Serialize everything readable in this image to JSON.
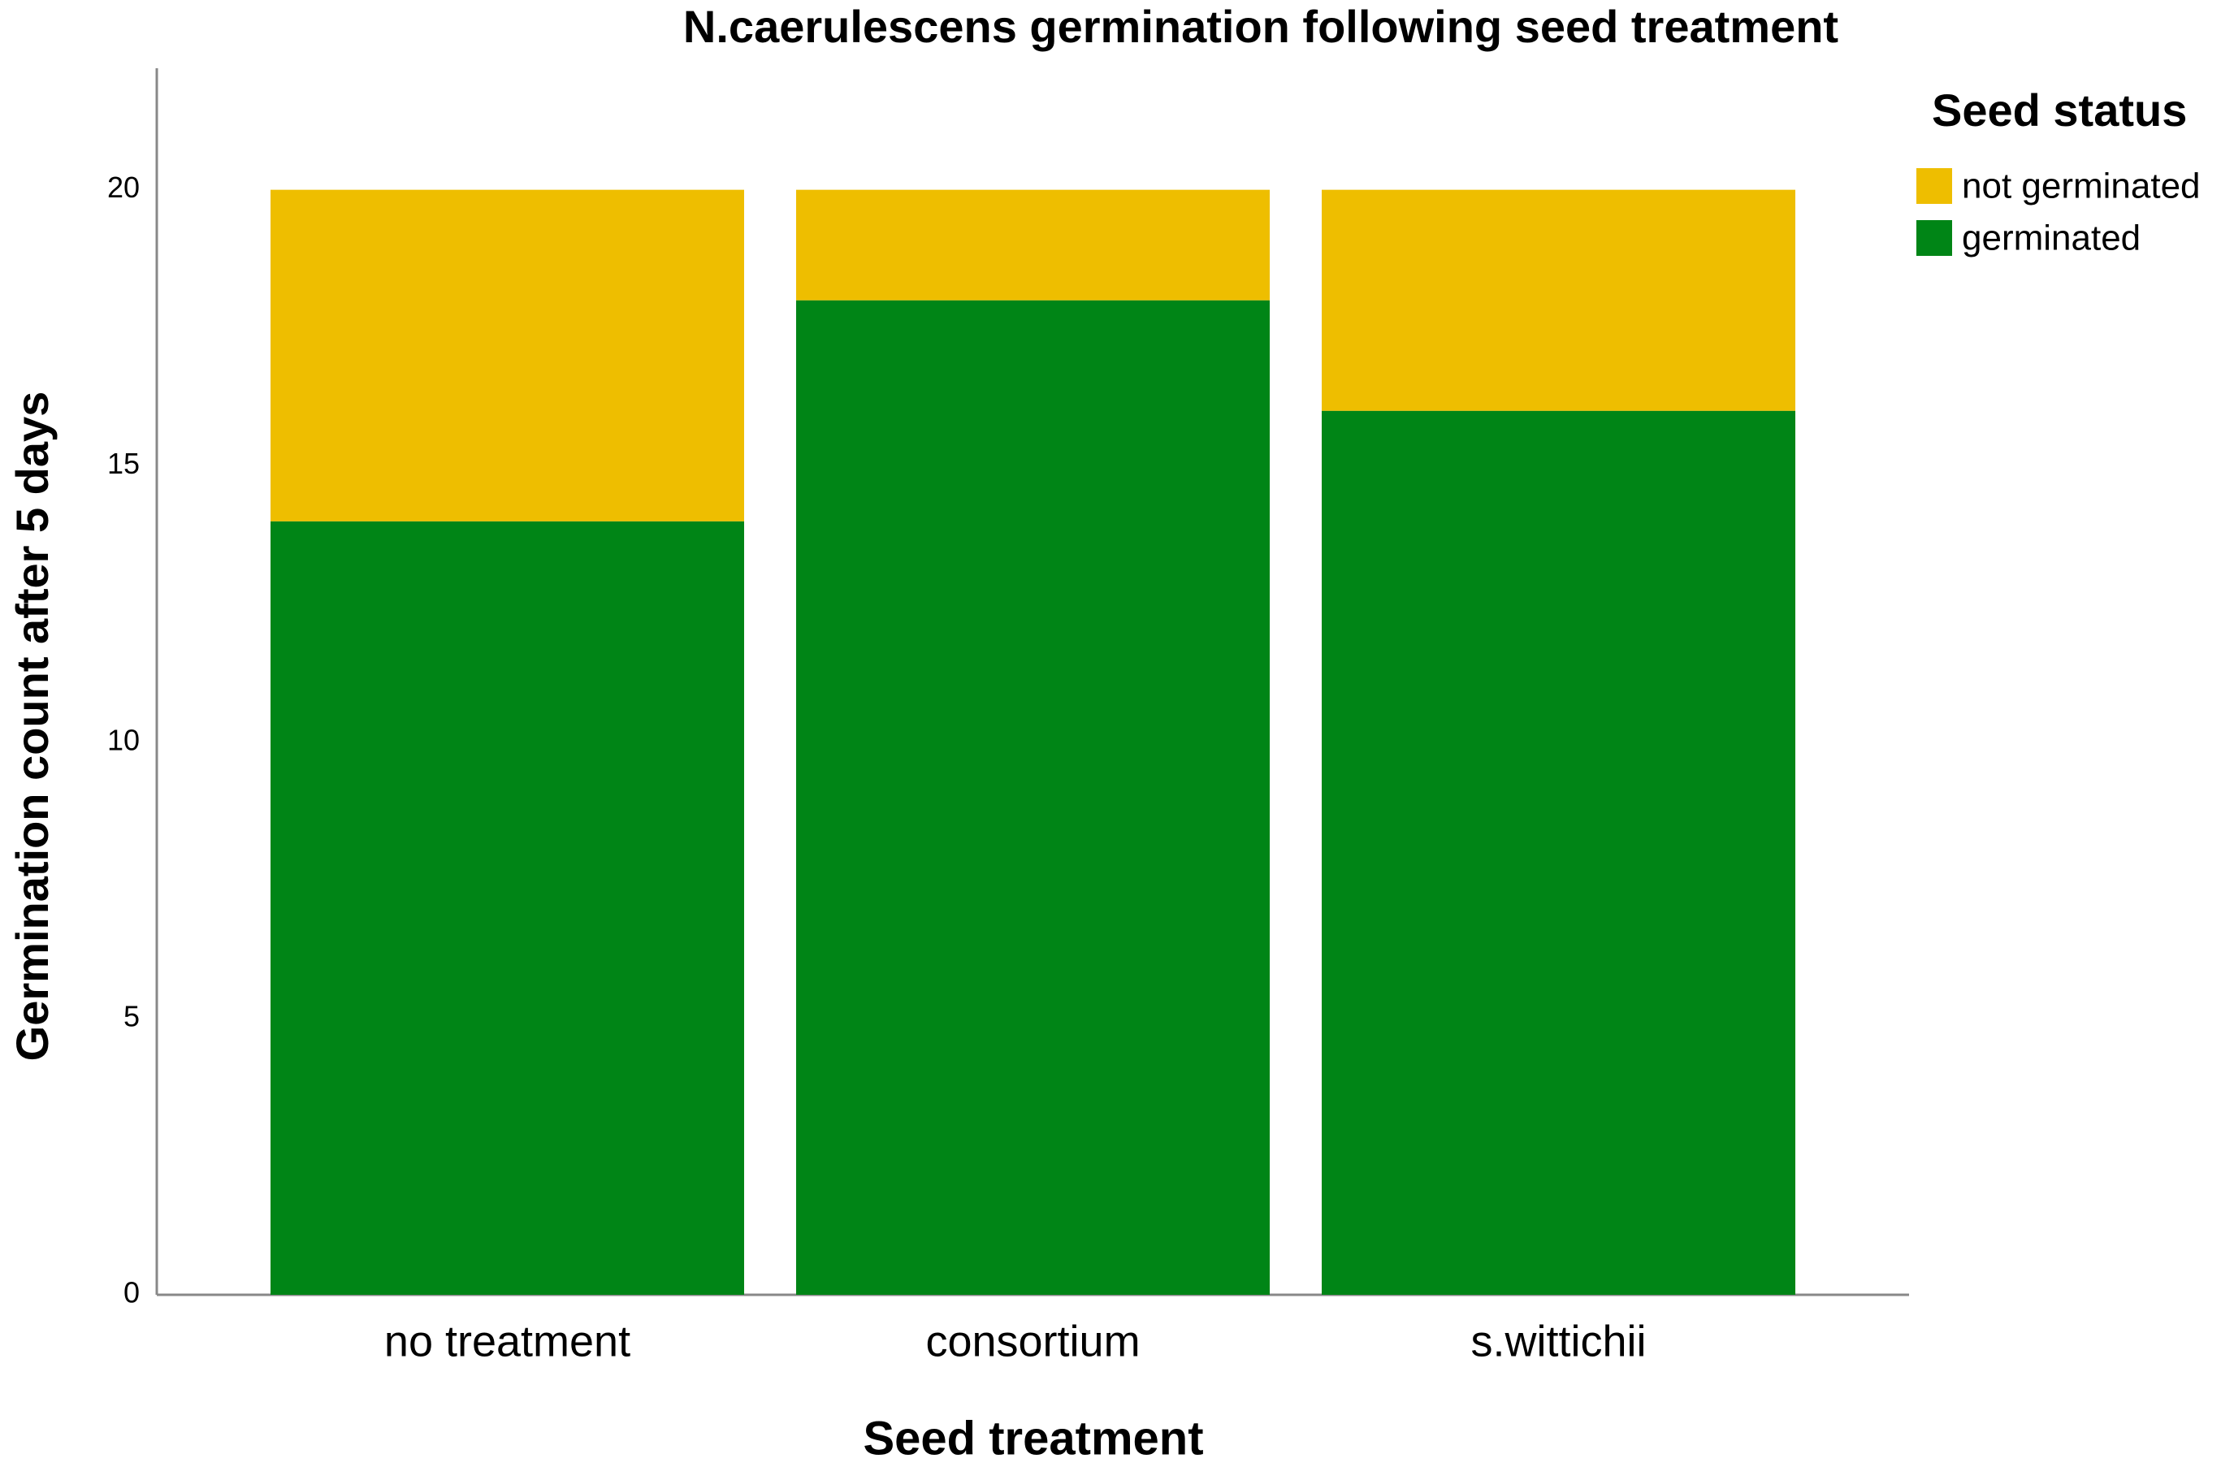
{
  "chart_data": {
    "type": "stacked-bar",
    "title": "N.caerulescens germination following seed treatment",
    "x_label": "Seed treatment",
    "y_label": "Germination count after 5 days",
    "legend_title": "Seed status",
    "categories": [
      "no treatment",
      "consortium",
      "s.wittichii"
    ],
    "series": [
      {
        "name": "not germinated",
        "color": "#eebe00",
        "values": [
          6,
          2,
          4
        ]
      },
      {
        "name": "germinated",
        "color": "#008516",
        "values": [
          14,
          18,
          16
        ]
      }
    ],
    "ylim": [
      0,
      22.2
    ],
    "yticks": [
      0,
      5,
      10,
      15,
      20
    ],
    "grid": false
  }
}
